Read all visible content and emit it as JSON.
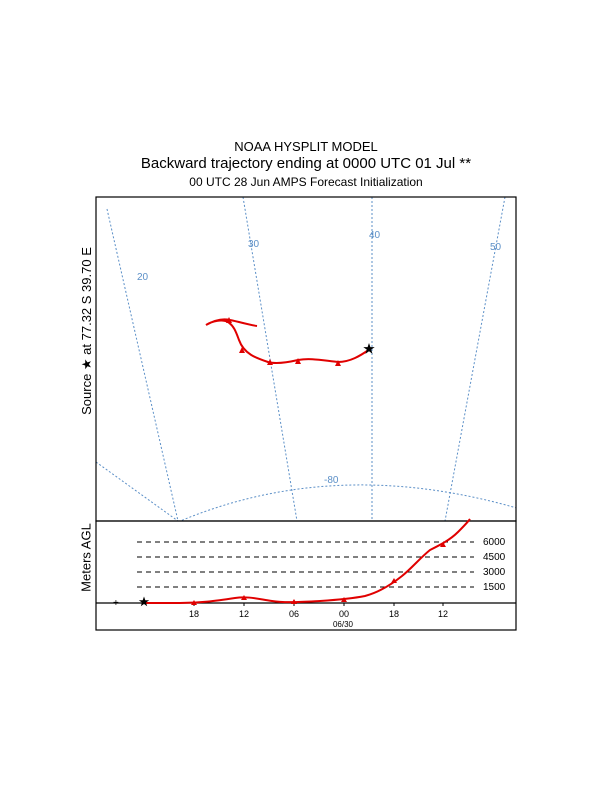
{
  "header": {
    "line1": "NOAA HYSPLIT MODEL",
    "line2": "Backward trajectory ending at 0000 UTC 01 Jul **",
    "line3": "00 UTC 28 Jun    AMPS  Forecast Initialization"
  },
  "source": {
    "label": "Source ★ at   77.32 S   39.70 E",
    "lat": "77.32 S",
    "lon": "39.70 E",
    "marker_icon": "star-icon"
  },
  "map": {
    "meridian_labels": [
      "20",
      "30",
      "40",
      "50"
    ],
    "parallel_labels": [
      "-80"
    ],
    "grid_color": "#5b8fc7",
    "trajectory_color": "#e00000"
  },
  "height_panel": {
    "ylabel": "Meters AGL",
    "levels": [
      "6000",
      "4500",
      "3000",
      "1500"
    ],
    "time_ticks": [
      "18",
      "12",
      "06",
      "00",
      "18",
      "12"
    ],
    "date_label": "06/30"
  }
}
